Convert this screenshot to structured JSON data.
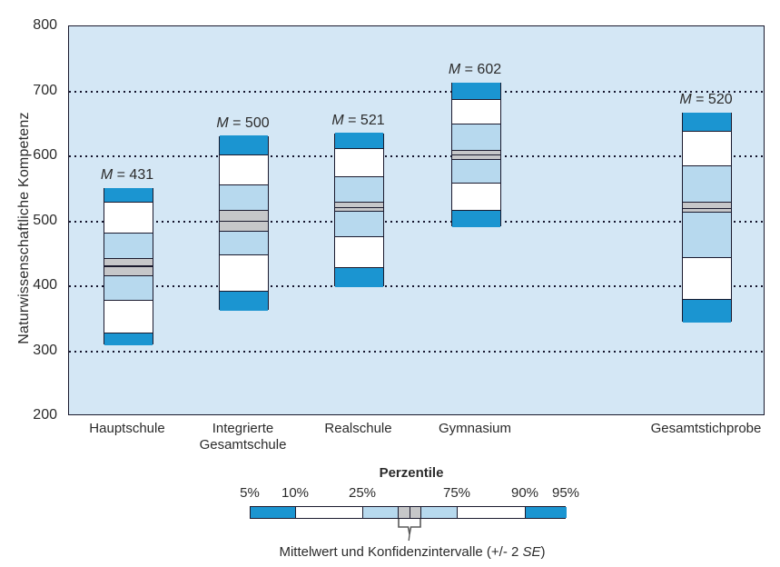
{
  "chart_data": {
    "type": "bar",
    "subtype": "percentile-band-columns",
    "title": "",
    "xlabel": "",
    "ylabel": "Naturwissenschaftliche Kompetenz",
    "ylim": [
      200,
      800
    ],
    "yticks": [
      800,
      700,
      600,
      500,
      400,
      300,
      200
    ],
    "gridlines": [
      700,
      600,
      500,
      400,
      300
    ],
    "grid_style": "dotted",
    "mean_prefix": "M",
    "groups": [
      {
        "category": "Hauptschule",
        "mean": 431,
        "mean_label": "M = 431",
        "p5": 310,
        "p10": 328,
        "p25": 379,
        "ci_low": 416,
        "ci_high": 443,
        "p75": 482,
        "p90": 530,
        "p95": 551
      },
      {
        "category": "Integrierte\nGesamtschule",
        "mean": 500,
        "mean_label": "M = 500",
        "p5": 363,
        "p10": 392,
        "p25": 448,
        "ci_low": 485,
        "ci_high": 517,
        "p75": 556,
        "p90": 602,
        "p95": 631
      },
      {
        "category": "Realschule",
        "mean": 521,
        "mean_label": "M = 521",
        "p5": 400,
        "p10": 428,
        "p25": 476,
        "ci_low": 515,
        "ci_high": 529,
        "p75": 568,
        "p90": 612,
        "p95": 635
      },
      {
        "category": "Gymnasium",
        "mean": 602,
        "mean_label": "M = 602",
        "p5": 492,
        "p10": 517,
        "p25": 559,
        "ci_low": 595,
        "ci_high": 609,
        "p75": 650,
        "p90": 688,
        "p95": 713
      },
      {
        "category": "Gesamtstichprobe",
        "mean": 520,
        "mean_label": "M = 520",
        "p5": 345,
        "p10": 380,
        "p25": 444,
        "ci_low": 514,
        "ci_high": 529,
        "p75": 585,
        "p90": 638,
        "p95": 667
      }
    ],
    "band_order": [
      "p5-p10: dark",
      "p10-p25: white",
      "p25-ci_low: light",
      "ci_low-ci_high: gray (mean line inside)",
      "ci_high-p75: light",
      "p75-p90: white",
      "p90-p95: dark"
    ]
  },
  "legend": {
    "title": "Perzentile",
    "percent_labels": [
      "5%",
      "10%",
      "25%",
      "75%",
      "90%",
      "95%"
    ],
    "caption_before": "Mittelwert und Konfidenzintervalle (+/- 2 ",
    "caption_italic": "SE",
    "caption_after": ")"
  },
  "colors": {
    "plot_bg": "#d4e7f5",
    "band_dark": "#1b95d1",
    "band_light": "#b7d9ee",
    "band_white": "#ffffff",
    "ci_gray": "#c6c7c9",
    "border": "#1a1a2e",
    "text": "#2b2b2b"
  }
}
